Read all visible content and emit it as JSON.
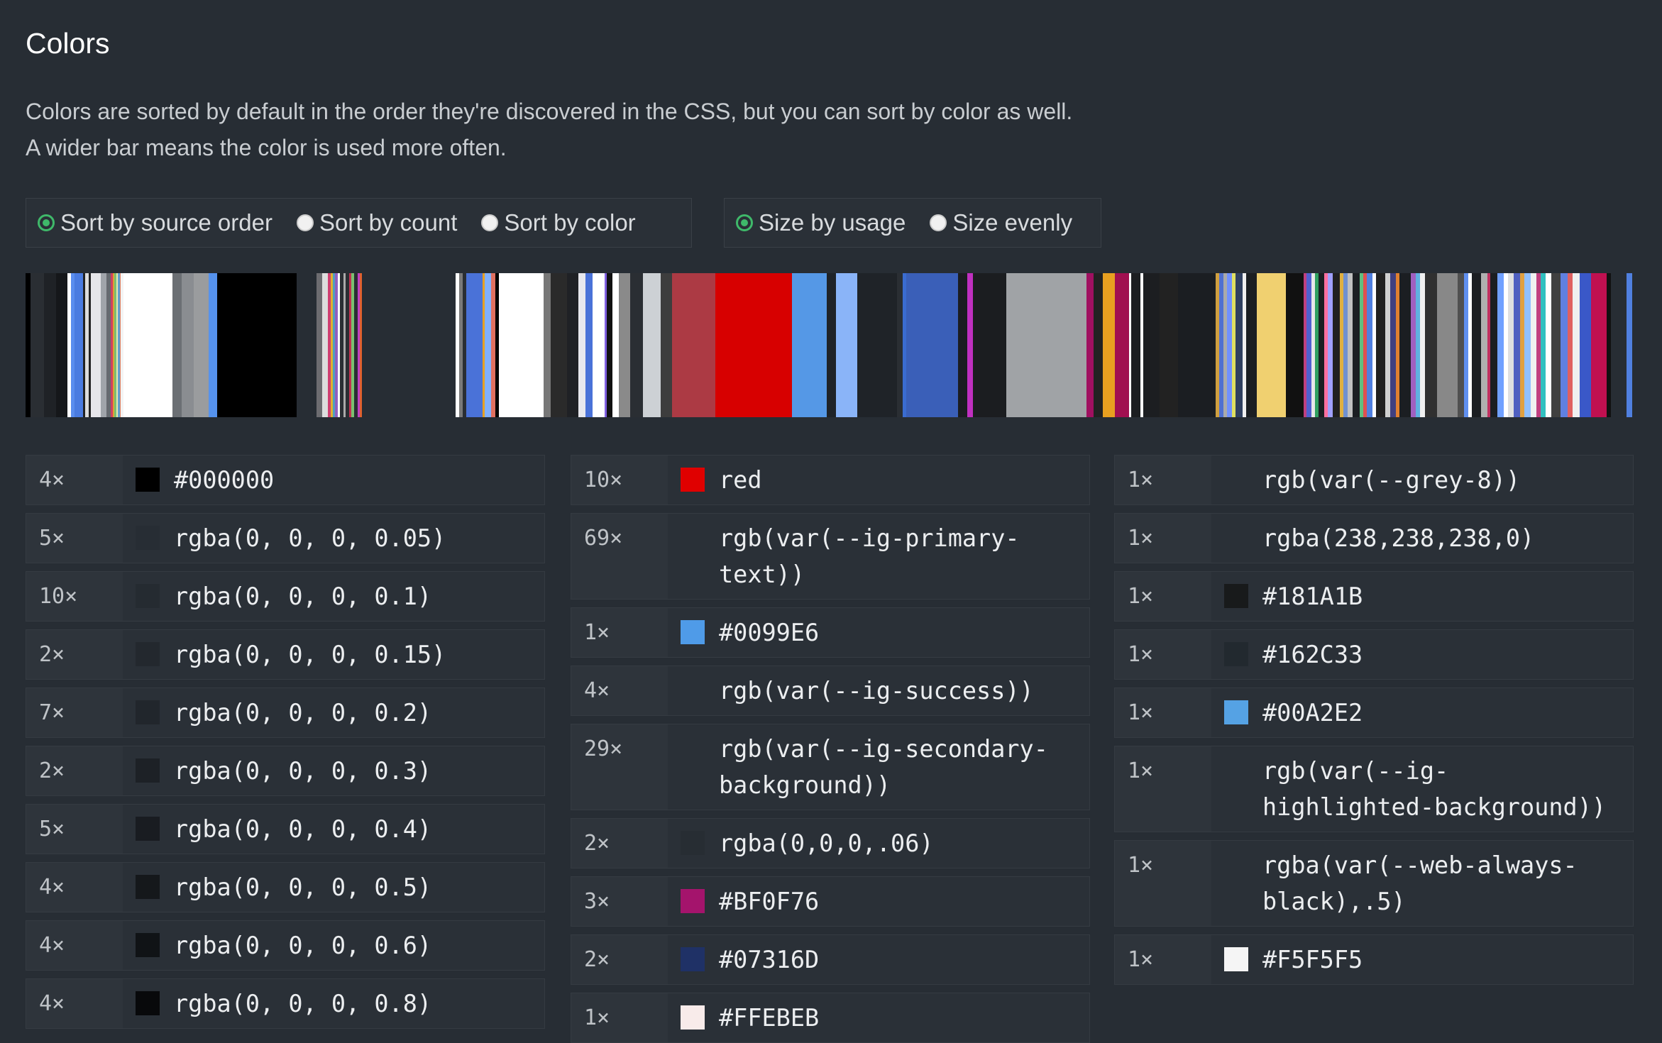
{
  "title": "Colors",
  "description": [
    "Colors are sorted by default in the order they're discovered in the CSS, but you can sort by color as well.",
    "A wider bar means the color is used more often."
  ],
  "sort_options": [
    {
      "label": "Sort by source order",
      "checked": true
    },
    {
      "label": "Sort by count",
      "checked": false
    },
    {
      "label": "Sort by color",
      "checked": false
    }
  ],
  "size_options": [
    {
      "label": "Size by usage",
      "checked": true
    },
    {
      "label": "Size evenly",
      "checked": false
    }
  ],
  "accent_color": "#3fb96a",
  "color_bar": [
    [
      "#000000",
      4
    ],
    [
      "#2a2e33",
      12
    ],
    [
      "#1f2226",
      10
    ],
    [
      "#15171a",
      10
    ],
    [
      "#ffffff",
      3
    ],
    [
      "#5a8dee",
      3
    ],
    [
      "#4a7be0",
      7
    ],
    [
      "#222222",
      2
    ],
    [
      "#dddddd",
      3
    ],
    [
      "#222222",
      2
    ],
    [
      "#e6e6ea",
      8
    ],
    [
      "#a0a4aa",
      5
    ],
    [
      "#666a70",
      4
    ],
    [
      "#d04060",
      1.5
    ],
    [
      "#e0a030",
      1.5
    ],
    [
      "#7bc070",
      1.5
    ],
    [
      "#e8e8b0",
      1.5
    ],
    [
      "#60a0d0",
      1.5
    ],
    [
      "#e08060",
      1
    ],
    [
      "#f4f4f4",
      2
    ],
    [
      "#ffffff",
      42
    ],
    [
      "#6b6f74",
      8
    ],
    [
      "#8a8d91",
      10
    ],
    [
      "#9a9c9e",
      13
    ],
    [
      "#5592ed",
      7
    ],
    [
      "#000000",
      68
    ],
    [
      "transparent",
      17
    ],
    [
      "#6c6c70",
      5
    ],
    [
      "#dddddd",
      5
    ],
    [
      "#d04070",
      2
    ],
    [
      "#e0b030",
      2
    ],
    [
      "#50a0c0",
      2
    ],
    [
      "#9060c0",
      2
    ],
    [
      "#ffffff",
      2
    ],
    [
      "#2a2e33",
      3
    ],
    [
      "#aaaaaa",
      2
    ],
    [
      "#2a2e33",
      3
    ],
    [
      "#c03050",
      2
    ],
    [
      "#7bc070",
      2
    ],
    [
      "#2a2e33",
      3
    ],
    [
      "#c040c0",
      2
    ],
    [
      "#e06030",
      2
    ],
    [
      "transparent",
      80
    ],
    [
      "#ffffff",
      3
    ],
    [
      "#7a7a7a",
      3
    ],
    [
      "#2a2e33",
      3
    ],
    [
      "#4a72d8",
      14
    ],
    [
      "#e8a020",
      2
    ],
    [
      "#80b0ff",
      5
    ],
    [
      "#e07060",
      4
    ],
    [
      "#000000",
      3
    ],
    [
      "#ffffff",
      38
    ],
    [
      "#777777",
      6
    ],
    [
      "#2a2a2a",
      14
    ],
    [
      "#1f2125",
      10
    ],
    [
      "#e8e8ee",
      6
    ],
    [
      "#4a72d8",
      6
    ],
    [
      "#ffffff",
      10
    ],
    [
      "#8060e0",
      2
    ],
    [
      "#111111",
      5
    ],
    [
      "#ffffff",
      5
    ],
    [
      "#8a8a8a",
      10
    ],
    [
      "#2a2e33",
      11
    ],
    [
      "#cdd1d5",
      15
    ],
    [
      "#3d3d3d",
      10
    ],
    [
      "#ac3a44",
      37
    ],
    [
      "#d70000",
      65
    ],
    [
      "#5598e6",
      30
    ],
    [
      "#1f2328",
      8
    ],
    [
      "#8ab4f8",
      18
    ],
    [
      "#1f2328",
      34
    ],
    [
      "#2a2e33",
      5
    ],
    [
      "#3a6cd0",
      3
    ],
    [
      "#3a5fb8",
      44
    ],
    [
      "#1b1d20",
      8
    ],
    [
      "#c030c0",
      5
    ],
    [
      "#1b1d20",
      28
    ],
    [
      "#a0a3a6",
      69
    ],
    [
      "#a01060",
      6
    ],
    [
      "#222222",
      8
    ],
    [
      "#e8a020",
      10
    ],
    [
      "#a01050",
      12
    ],
    [
      "#ffffff",
      2
    ],
    [
      "#1c1e21",
      8
    ],
    [
      "#ffffff",
      2
    ],
    [
      "#1c1e21",
      14
    ],
    [
      "#222222",
      16
    ],
    [
      "#1b1e22",
      32
    ],
    [
      "#d0a040",
      3
    ],
    [
      "#5070d0",
      4
    ],
    [
      "#aaaaaa",
      3
    ],
    [
      "#7090ff",
      4
    ],
    [
      "#e0e060",
      3
    ],
    [
      "#304060",
      6
    ],
    [
      "#f0f0f0",
      3
    ],
    [
      "#1b1e22",
      9
    ],
    [
      "#f0d070",
      25
    ],
    [
      "#111111",
      15
    ],
    [
      "#c04080",
      3
    ],
    [
      "#5060d0",
      4
    ],
    [
      "#e8e8e8",
      3
    ],
    [
      "#30a060",
      3
    ],
    [
      "#1b1e22",
      5
    ],
    [
      "#ff70a0",
      3
    ],
    [
      "#a0a0ff",
      4
    ],
    [
      "#202020",
      6
    ],
    [
      "#e0b040",
      3
    ],
    [
      "#7090d0",
      4
    ],
    [
      "#c0c0c0",
      4
    ],
    [
      "#1b1e22",
      6
    ],
    [
      "#60c080",
      3
    ],
    [
      "#e05050",
      3
    ],
    [
      "#5080e0",
      5
    ],
    [
      "#ffffff",
      3
    ],
    [
      "#202020",
      8
    ],
    [
      "#d0d0d0",
      4
    ],
    [
      "#404080",
      5
    ],
    [
      "#e08030",
      3
    ],
    [
      "#1b1e22",
      10
    ],
    [
      "#a060c0",
      4
    ],
    [
      "#60b0e0",
      4
    ],
    [
      "#f0f0f0",
      4
    ],
    [
      "#303030",
      10
    ],
    [
      "#888888",
      18
    ],
    [
      "#505050",
      5
    ],
    [
      "#6090f0",
      4
    ],
    [
      "#ffffff",
      3
    ],
    [
      "#1b1e22",
      8
    ],
    [
      "#b0b0b0",
      5
    ],
    [
      "#c03060",
      3
    ],
    [
      "#1b1e22",
      6
    ],
    [
      "#70a0ff",
      5
    ],
    [
      "#ffffff",
      4
    ],
    [
      "#e0e0e0",
      5
    ],
    [
      "#5060c0",
      5
    ],
    [
      "#e0a040",
      4
    ],
    [
      "#90c0ff",
      5
    ],
    [
      "#f0f0f0",
      5
    ],
    [
      "#c04080",
      4
    ],
    [
      "#30c0c0",
      4
    ],
    [
      "#ffffff",
      5
    ],
    [
      "#404040",
      8
    ],
    [
      "#6080e0",
      6
    ],
    [
      "#e06060",
      4
    ],
    [
      "#f0f0f0",
      6
    ],
    [
      "#3a58c8",
      10
    ],
    [
      "#c01050",
      13
    ],
    [
      "#111111",
      4
    ],
    [
      "transparent",
      13
    ],
    [
      "#5080e0",
      5
    ]
  ],
  "columns": [
    [
      {
        "count": "4×",
        "value": "#000000",
        "swatch": "#000000"
      },
      {
        "count": "5×",
        "value": "rgba(0, 0, 0, 0.05)",
        "swatch": "rgba(0,0,0,0.05)"
      },
      {
        "count": "10×",
        "value": "rgba(0, 0, 0, 0.1)",
        "swatch": "rgba(0,0,0,0.1)"
      },
      {
        "count": "2×",
        "value": "rgba(0, 0, 0, 0.15)",
        "swatch": "rgba(0,0,0,0.15)"
      },
      {
        "count": "7×",
        "value": "rgba(0, 0, 0, 0.2)",
        "swatch": "rgba(0,0,0,0.2)"
      },
      {
        "count": "2×",
        "value": "rgba(0, 0, 0, 0.3)",
        "swatch": "rgba(0,0,0,0.3)"
      },
      {
        "count": "5×",
        "value": "rgba(0, 0, 0, 0.4)",
        "swatch": "rgba(0,0,0,0.4)"
      },
      {
        "count": "4×",
        "value": "rgba(0, 0, 0, 0.5)",
        "swatch": "rgba(0,0,0,0.5)"
      },
      {
        "count": "4×",
        "value": "rgba(0, 0, 0, 0.6)",
        "swatch": "rgba(0,0,0,0.6)"
      },
      {
        "count": "4×",
        "value": "rgba(0, 0, 0, 0.8)",
        "swatch": "rgba(0,0,0,0.8)"
      }
    ],
    [
      {
        "count": "10×",
        "value": "red",
        "swatch": "#e00000"
      },
      {
        "count": "69×",
        "value": "rgb(var(--ig-primary-text))",
        "swatch": "transparent"
      },
      {
        "count": "1×",
        "value": "#0099E6",
        "swatch": "#4f9be8"
      },
      {
        "count": "4×",
        "value": "rgb(var(--ig-success))",
        "swatch": "transparent"
      },
      {
        "count": "29×",
        "value": "rgb(var(--ig-secondary-background))",
        "swatch": "transparent"
      },
      {
        "count": "2×",
        "value": "rgba(0,0,0,.06)",
        "swatch": "rgba(0,0,0,0.06)"
      },
      {
        "count": "3×",
        "value": "#BF0F76",
        "swatch": "#a4146c"
      },
      {
        "count": "2×",
        "value": "#07316D",
        "swatch": "#1f3166"
      },
      {
        "count": "1×",
        "value": "#FFEBEB",
        "swatch": "#f8ebea"
      }
    ],
    [
      {
        "count": "1×",
        "value": "rgb(var(--grey-8))",
        "swatch": "transparent"
      },
      {
        "count": "1×",
        "value": "rgba(238,238,238,0)",
        "swatch": "transparent"
      },
      {
        "count": "1×",
        "value": "#181A1B",
        "swatch": "#181a1b"
      },
      {
        "count": "1×",
        "value": "#162C33",
        "swatch": "#22292f"
      },
      {
        "count": "1×",
        "value": "#00A2E2",
        "swatch": "#55a2e4"
      },
      {
        "count": "1×",
        "value": "rgb(var(--ig-highlighted-background))",
        "swatch": "transparent"
      },
      {
        "count": "1×",
        "value": "rgba(var(--web-always-black),.5)",
        "swatch": "transparent"
      },
      {
        "count": "1×",
        "value": "#F5F5F5",
        "swatch": "#f5f5f5"
      }
    ]
  ]
}
